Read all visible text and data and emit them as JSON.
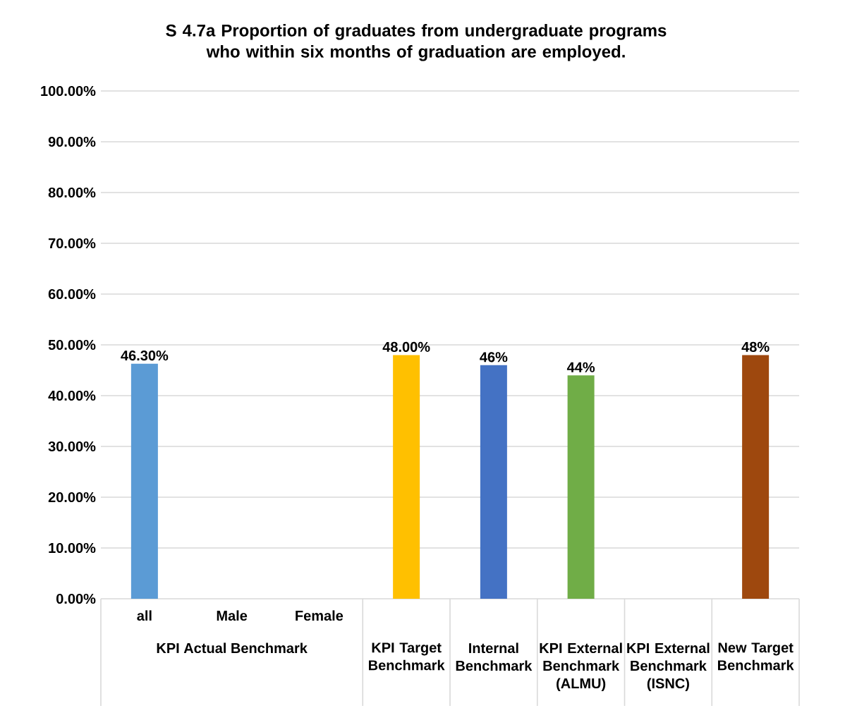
{
  "chart_data": {
    "type": "bar",
    "title": "S 4.7a Proportion of graduates from undergraduate programs who within six months of graduation are employed.",
    "categories": [
      "all",
      "Male",
      "Female",
      "KPI Target Benchmark",
      "Internal Benchmark",
      "KPI External Benchmark (ALMU)",
      "KPI External Benchmark (ISNC)",
      "New Target Benchmark"
    ],
    "values": [
      46.3,
      null,
      null,
      48,
      46,
      44,
      null,
      48
    ],
    "value_labels": [
      "46.30%",
      null,
      null,
      "48.00%",
      "46%",
      "44%",
      null,
      "48%"
    ],
    "colors": [
      "#5b9bd5",
      null,
      null,
      "#ffc000",
      "#4472c4",
      "#70ad47",
      null,
      "#9e480e"
    ],
    "annotations": [
      "KPI Actual Benchmark"
    ],
    "ylim": [
      0,
      100
    ],
    "yticks": [
      {
        "value": 0,
        "label": "0.00%"
      },
      {
        "value": 10,
        "label": "10.00%"
      },
      {
        "value": 20,
        "label": "20.00%"
      },
      {
        "value": 30,
        "label": "30.00%"
      },
      {
        "value": 40,
        "label": "40.00%"
      },
      {
        "value": 50,
        "label": "50.00%"
      },
      {
        "value": 60,
        "label": "60.00%"
      },
      {
        "value": 70,
        "label": "70.00%"
      },
      {
        "value": 80,
        "label": "80.00%"
      },
      {
        "value": 90,
        "label": "90.00%"
      },
      {
        "value": 100,
        "label": "100.00%"
      }
    ],
    "grid": "y"
  }
}
